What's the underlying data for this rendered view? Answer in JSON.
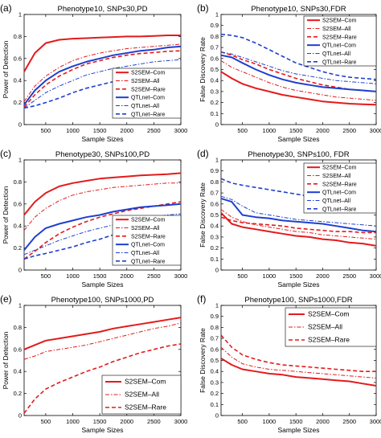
{
  "chart_data": [
    {
      "panel": "(a)",
      "type": "line",
      "title": "Phenotype10, SNPs30,PD",
      "xlabel": "Sample Sizes",
      "ylabel": "Power of Detection",
      "xlim": [
        100,
        3000
      ],
      "ylim": [
        0,
        1
      ],
      "xticks": [
        500,
        1000,
        1500,
        2000,
        2500,
        3000
      ],
      "yticks": [
        0,
        0.2,
        0.4,
        0.6,
        0.8,
        1
      ],
      "ytick_labels": [
        "0",
        "0.2",
        "0.4",
        "0.6",
        "0.8",
        "1"
      ],
      "legend": "right",
      "x": [
        100,
        300,
        500,
        750,
        1000,
        1250,
        1500,
        1750,
        2000,
        2250,
        2500,
        2750,
        3000
      ],
      "series": [
        {
          "name": "S2SEM–Com",
          "color": "#e31a1c",
          "style": "solid",
          "width": 2,
          "values": [
            0.48,
            0.65,
            0.74,
            0.77,
            0.78,
            0.785,
            0.79,
            0.795,
            0.8,
            0.8,
            0.805,
            0.81,
            0.81
          ]
        },
        {
          "name": "S2SEM–All",
          "color": "#e31a1c",
          "style": "dashdot",
          "width": 1,
          "values": [
            0.21,
            0.35,
            0.44,
            0.52,
            0.58,
            0.62,
            0.65,
            0.67,
            0.69,
            0.7,
            0.71,
            0.72,
            0.73
          ]
        },
        {
          "name": "S2SEM–Rare",
          "color": "#e31a1c",
          "style": "dashed",
          "width": 1.6,
          "values": [
            0.16,
            0.27,
            0.36,
            0.44,
            0.5,
            0.55,
            0.58,
            0.61,
            0.63,
            0.645,
            0.655,
            0.665,
            0.67
          ]
        },
        {
          "name": "QTLnet–Com",
          "color": "#1f3fcf",
          "style": "solid",
          "width": 2,
          "values": [
            0.18,
            0.31,
            0.4,
            0.48,
            0.53,
            0.57,
            0.6,
            0.63,
            0.65,
            0.67,
            0.68,
            0.7,
            0.71
          ]
        },
        {
          "name": "QTLnet–All",
          "color": "#1f3fcf",
          "style": "dashdot",
          "width": 1,
          "values": [
            0.15,
            0.22,
            0.29,
            0.35,
            0.4,
            0.45,
            0.48,
            0.51,
            0.53,
            0.55,
            0.57,
            0.58,
            0.59
          ]
        },
        {
          "name": "QTLnet–Rare",
          "color": "#1f3fcf",
          "style": "dashed",
          "width": 1.6,
          "values": [
            0.15,
            0.17,
            0.2,
            0.24,
            0.29,
            0.33,
            0.36,
            0.39,
            0.42,
            0.44,
            0.46,
            0.48,
            0.5
          ]
        }
      ]
    },
    {
      "panel": "(b)",
      "type": "line",
      "title": "Phenotype10, SNPs30,FDR",
      "xlabel": "Sample Sizes",
      "ylabel": "False Discovery Rate",
      "xlim": [
        100,
        3000
      ],
      "ylim": [
        0,
        1
      ],
      "xticks": [
        500,
        1000,
        1500,
        2000,
        2500,
        3000
      ],
      "yticks": [
        0,
        0.1,
        0.2,
        0.3,
        0.4,
        0.5,
        0.6,
        0.7,
        0.8,
        0.9,
        1
      ],
      "ytick_labels": [
        "0",
        "0.1",
        "0.2",
        "0.3",
        "0.4",
        "0.5",
        "0.6",
        "0.7",
        "0.8",
        "0.9",
        "1"
      ],
      "legend": "top-right",
      "x": [
        100,
        300,
        500,
        750,
        1000,
        1250,
        1500,
        1750,
        2000,
        2250,
        2500,
        2750,
        3000
      ],
      "series": [
        {
          "name": "S2SEM–Com",
          "color": "#e31a1c",
          "style": "solid",
          "width": 2,
          "values": [
            0.48,
            0.42,
            0.37,
            0.33,
            0.3,
            0.27,
            0.25,
            0.23,
            0.21,
            0.2,
            0.19,
            0.185,
            0.18
          ]
        },
        {
          "name": "S2SEM–All",
          "color": "#e31a1c",
          "style": "dashdot",
          "width": 1,
          "values": [
            0.58,
            0.52,
            0.48,
            0.43,
            0.38,
            0.34,
            0.31,
            0.29,
            0.27,
            0.25,
            0.24,
            0.23,
            0.22
          ]
        },
        {
          "name": "S2SEM–Rare",
          "color": "#e31a1c",
          "style": "dashed",
          "width": 1.6,
          "values": [
            0.66,
            0.63,
            0.59,
            0.55,
            0.5,
            0.46,
            0.42,
            0.39,
            0.36,
            0.34,
            0.32,
            0.31,
            0.3
          ]
        },
        {
          "name": "QTLnet–Com",
          "color": "#1f3fcf",
          "style": "solid",
          "width": 2,
          "values": [
            0.63,
            0.61,
            0.56,
            0.5,
            0.45,
            0.41,
            0.38,
            0.36,
            0.34,
            0.33,
            0.32,
            0.31,
            0.3
          ]
        },
        {
          "name": "QTLnet–All",
          "color": "#1f3fcf",
          "style": "dashdot",
          "width": 1,
          "values": [
            0.66,
            0.64,
            0.61,
            0.57,
            0.53,
            0.49,
            0.46,
            0.44,
            0.42,
            0.4,
            0.39,
            0.38,
            0.37
          ]
        },
        {
          "name": "QTLnet–Rare",
          "color": "#1f3fcf",
          "style": "dashed",
          "width": 1.6,
          "values": [
            0.82,
            0.81,
            0.79,
            0.74,
            0.68,
            0.62,
            0.56,
            0.52,
            0.48,
            0.45,
            0.43,
            0.42,
            0.41
          ]
        }
      ]
    },
    {
      "panel": "(c)",
      "type": "line",
      "title": "Phenotype30, SNPs100,PD",
      "xlabel": "Sample Sizes",
      "ylabel": "Power of Detection",
      "xlim": [
        100,
        3000
      ],
      "ylim": [
        0,
        1
      ],
      "xticks": [
        500,
        1000,
        1500,
        2000,
        2500,
        3000
      ],
      "yticks": [
        0,
        0.2,
        0.4,
        0.6,
        0.8,
        1
      ],
      "ytick_labels": [
        "0",
        "0.2",
        "0.4",
        "0.6",
        "0.8",
        "1"
      ],
      "legend": "right",
      "x": [
        100,
        300,
        500,
        750,
        1000,
        1250,
        1500,
        1750,
        2000,
        2250,
        2500,
        2750,
        3000
      ],
      "series": [
        {
          "name": "S2SEM–Com",
          "color": "#e31a1c",
          "style": "solid",
          "width": 2,
          "values": [
            0.5,
            0.62,
            0.7,
            0.76,
            0.79,
            0.81,
            0.83,
            0.84,
            0.85,
            0.86,
            0.865,
            0.87,
            0.88
          ]
        },
        {
          "name": "S2SEM–All",
          "color": "#e31a1c",
          "style": "dashdot",
          "width": 1,
          "values": [
            0.36,
            0.48,
            0.56,
            0.63,
            0.68,
            0.71,
            0.73,
            0.75,
            0.76,
            0.77,
            0.78,
            0.79,
            0.79
          ]
        },
        {
          "name": "S2SEM–Rare",
          "color": "#e31a1c",
          "style": "dashed",
          "width": 1.6,
          "values": [
            0.1,
            0.17,
            0.25,
            0.33,
            0.39,
            0.44,
            0.48,
            0.51,
            0.54,
            0.56,
            0.58,
            0.6,
            0.62
          ]
        },
        {
          "name": "QTLnet–Com",
          "color": "#1f3fcf",
          "style": "solid",
          "width": 2,
          "values": [
            0.18,
            0.3,
            0.38,
            0.42,
            0.45,
            0.48,
            0.5,
            0.53,
            0.55,
            0.57,
            0.58,
            0.59,
            0.6
          ]
        },
        {
          "name": "QTLnet–All",
          "color": "#1f3fcf",
          "style": "dashdot",
          "width": 1,
          "values": [
            0.14,
            0.18,
            0.22,
            0.27,
            0.31,
            0.35,
            0.38,
            0.41,
            0.44,
            0.46,
            0.48,
            0.5,
            0.51
          ]
        },
        {
          "name": "QTLnet–Rare",
          "color": "#1f3fcf",
          "style": "dashed",
          "width": 1.6,
          "values": [
            0.1,
            0.13,
            0.15,
            0.18,
            0.21,
            0.25,
            0.28,
            0.32,
            0.35,
            0.38,
            0.41,
            0.43,
            0.45
          ]
        }
      ]
    },
    {
      "panel": "(d)",
      "type": "line",
      "title": "Phenotype30, SNPs100, FDR",
      "xlabel": "Sample Sizes",
      "ylabel": "False Discovery Rate",
      "xlim": [
        100,
        3000
      ],
      "ylim": [
        0,
        1
      ],
      "xticks": [
        500,
        1000,
        1500,
        2000,
        2500,
        3000
      ],
      "yticks": [
        0,
        0.1,
        0.2,
        0.3,
        0.4,
        0.5,
        0.6,
        0.7,
        0.8,
        0.9,
        1
      ],
      "ytick_labels": [
        "0",
        "0.1",
        "0.2",
        "0.3",
        "0.4",
        "0.5",
        "0.6",
        "0.7",
        "0.8",
        "0.9",
        "1"
      ],
      "legend": "top-right",
      "x": [
        100,
        300,
        500,
        750,
        1000,
        1250,
        1500,
        1750,
        2000,
        2250,
        2500,
        2750,
        3000
      ],
      "series": [
        {
          "name": "S2SEM–Com",
          "color": "#e31a1c",
          "style": "solid",
          "width": 2,
          "values": [
            0.52,
            0.42,
            0.39,
            0.37,
            0.35,
            0.33,
            0.31,
            0.3,
            0.28,
            0.27,
            0.25,
            0.24,
            0.22
          ]
        },
        {
          "name": "S2SEM–All",
          "color": "#e31a1c",
          "style": "dashdot",
          "width": 1,
          "values": [
            0.55,
            0.48,
            0.44,
            0.41,
            0.39,
            0.37,
            0.35,
            0.34,
            0.32,
            0.31,
            0.3,
            0.29,
            0.28
          ]
        },
        {
          "name": "S2SEM–Rare",
          "color": "#e31a1c",
          "style": "dashed",
          "width": 1.6,
          "values": [
            0.48,
            0.45,
            0.43,
            0.42,
            0.41,
            0.4,
            0.38,
            0.37,
            0.36,
            0.35,
            0.35,
            0.34,
            0.34
          ]
        },
        {
          "name": "QTLnet–Com",
          "color": "#1f3fcf",
          "style": "solid",
          "width": 2,
          "values": [
            0.65,
            0.62,
            0.5,
            0.48,
            0.47,
            0.45,
            0.44,
            0.43,
            0.42,
            0.4,
            0.38,
            0.36,
            0.35
          ]
        },
        {
          "name": "QTLnet–All",
          "color": "#1f3fcf",
          "style": "dashdot",
          "width": 1,
          "values": [
            0.67,
            0.64,
            0.58,
            0.52,
            0.5,
            0.48,
            0.46,
            0.45,
            0.44,
            0.43,
            0.42,
            0.41,
            0.4
          ]
        },
        {
          "name": "QTLnet–Rare",
          "color": "#1f3fcf",
          "style": "dashed",
          "width": 1.6,
          "values": [
            0.83,
            0.79,
            0.77,
            0.75,
            0.73,
            0.71,
            0.69,
            0.67,
            0.65,
            0.62,
            0.6,
            0.58,
            0.55
          ]
        }
      ]
    },
    {
      "panel": "(e)",
      "type": "line",
      "title": "Phenotype100, SNPs1000,PD",
      "xlabel": "Sample Sizes",
      "ylabel": "Power of Detection",
      "xlim": [
        100,
        3000
      ],
      "ylim": [
        0,
        1
      ],
      "xticks": [
        500,
        1000,
        1500,
        2000,
        2500,
        3000
      ],
      "yticks": [
        0,
        0.2,
        0.4,
        0.6,
        0.8,
        1
      ],
      "ytick_labels": [
        "0",
        "0.2",
        "0.4",
        "0.6",
        "0.8",
        "1"
      ],
      "legend": "bottom-right",
      "x": [
        100,
        300,
        500,
        750,
        1000,
        1250,
        1500,
        1750,
        2000,
        2250,
        2500,
        2750,
        3000
      ],
      "series": [
        {
          "name": "S2SEM–Com",
          "color": "#e31a1c",
          "style": "solid",
          "width": 2,
          "values": [
            0.6,
            0.64,
            0.68,
            0.7,
            0.72,
            0.74,
            0.76,
            0.79,
            0.81,
            0.83,
            0.85,
            0.87,
            0.89
          ]
        },
        {
          "name": "S2SEM–All",
          "color": "#e31a1c",
          "style": "dashdot",
          "width": 1,
          "values": [
            0.51,
            0.54,
            0.58,
            0.6,
            0.62,
            0.64,
            0.67,
            0.7,
            0.73,
            0.76,
            0.79,
            0.81,
            0.84
          ]
        },
        {
          "name": "S2SEM–Rare",
          "color": "#e31a1c",
          "style": "dashed",
          "width": 1.6,
          "values": [
            0.02,
            0.15,
            0.24,
            0.3,
            0.35,
            0.4,
            0.44,
            0.49,
            0.53,
            0.57,
            0.6,
            0.63,
            0.65
          ]
        }
      ]
    },
    {
      "panel": "(f)",
      "type": "line",
      "title": "Phenotype100, SNPs1000,FDR",
      "xlabel": "Sample Sizes",
      "ylabel": "False Discovery Rate",
      "xlim": [
        100,
        3000
      ],
      "ylim": [
        0,
        1
      ],
      "xticks": [
        500,
        1000,
        1500,
        2000,
        2500,
        3000
      ],
      "yticks": [
        0,
        0.1,
        0.2,
        0.3,
        0.4,
        0.5,
        0.6,
        0.7,
        0.8,
        0.9,
        1
      ],
      "ytick_labels": [
        "0",
        "0.1",
        "0.2",
        "0.3",
        "0.4",
        "0.5",
        "0.6",
        "0.7",
        "0.8",
        "0.9",
        "1"
      ],
      "legend": "top-right",
      "x": [
        100,
        300,
        500,
        750,
        1000,
        1250,
        1500,
        1750,
        2000,
        2250,
        2500,
        2750,
        3000
      ],
      "series": [
        {
          "name": "S2SEM–Com",
          "color": "#e31a1c",
          "style": "solid",
          "width": 2,
          "values": [
            0.52,
            0.46,
            0.42,
            0.4,
            0.38,
            0.37,
            0.35,
            0.34,
            0.33,
            0.32,
            0.31,
            0.29,
            0.27
          ]
        },
        {
          "name": "S2SEM–All",
          "color": "#e31a1c",
          "style": "dashdot",
          "width": 1,
          "values": [
            0.62,
            0.53,
            0.47,
            0.44,
            0.42,
            0.41,
            0.4,
            0.39,
            0.38,
            0.37,
            0.36,
            0.35,
            0.34
          ]
        },
        {
          "name": "S2SEM–Rare",
          "color": "#e31a1c",
          "style": "dashed",
          "width": 1.6,
          "values": [
            0.73,
            0.62,
            0.55,
            0.51,
            0.48,
            0.46,
            0.45,
            0.44,
            0.43,
            0.42,
            0.41,
            0.4,
            0.4
          ]
        }
      ]
    }
  ]
}
